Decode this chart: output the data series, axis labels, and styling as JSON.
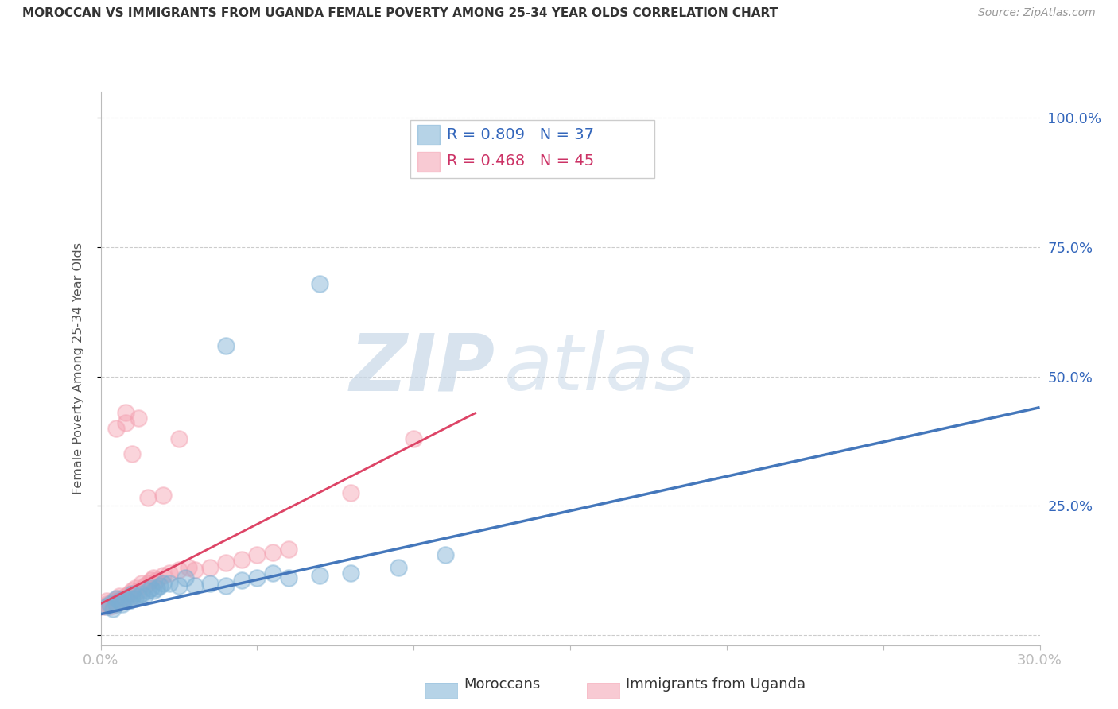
{
  "title": "MOROCCAN VS IMMIGRANTS FROM UGANDA FEMALE POVERTY AMONG 25-34 YEAR OLDS CORRELATION CHART",
  "source": "Source: ZipAtlas.com",
  "ylabel": "Female Poverty Among 25-34 Year Olds",
  "xlim": [
    0.0,
    0.3
  ],
  "ylim": [
    -0.02,
    1.05
  ],
  "xticks": [
    0.0,
    0.05,
    0.1,
    0.15,
    0.2,
    0.25,
    0.3
  ],
  "xticklabels": [
    "0.0%",
    "",
    "",
    "",
    "",
    "",
    "30.0%"
  ],
  "yticks": [
    0.0,
    0.25,
    0.5,
    0.75,
    1.0
  ],
  "yticklabels": [
    "",
    "25.0%",
    "50.0%",
    "75.0%",
    "100.0%"
  ],
  "legend1_r": "R = 0.809",
  "legend1_n": "N = 37",
  "legend2_r": "R = 0.468",
  "legend2_n": "N = 45",
  "blue_color": "#7BAFD4",
  "pink_color": "#F4A0B0",
  "watermark_zip": "ZIP",
  "watermark_atlas": "atlas",
  "blue_scatter": [
    [
      0.002,
      0.055
    ],
    [
      0.003,
      0.06
    ],
    [
      0.004,
      0.05
    ],
    [
      0.005,
      0.06
    ],
    [
      0.005,
      0.07
    ],
    [
      0.006,
      0.065
    ],
    [
      0.007,
      0.06
    ],
    [
      0.008,
      0.07
    ],
    [
      0.009,
      0.065
    ],
    [
      0.01,
      0.07
    ],
    [
      0.01,
      0.08
    ],
    [
      0.011,
      0.07
    ],
    [
      0.012,
      0.075
    ],
    [
      0.013,
      0.08
    ],
    [
      0.014,
      0.075
    ],
    [
      0.015,
      0.085
    ],
    [
      0.016,
      0.09
    ],
    [
      0.017,
      0.085
    ],
    [
      0.018,
      0.09
    ],
    [
      0.019,
      0.095
    ],
    [
      0.02,
      0.1
    ],
    [
      0.022,
      0.1
    ],
    [
      0.025,
      0.095
    ],
    [
      0.027,
      0.11
    ],
    [
      0.03,
      0.095
    ],
    [
      0.035,
      0.1
    ],
    [
      0.04,
      0.095
    ],
    [
      0.045,
      0.105
    ],
    [
      0.05,
      0.11
    ],
    [
      0.055,
      0.12
    ],
    [
      0.06,
      0.11
    ],
    [
      0.07,
      0.115
    ],
    [
      0.08,
      0.12
    ],
    [
      0.095,
      0.13
    ],
    [
      0.11,
      0.155
    ],
    [
      0.04,
      0.56
    ],
    [
      0.07,
      0.68
    ]
  ],
  "pink_scatter": [
    [
      0.001,
      0.055
    ],
    [
      0.002,
      0.06
    ],
    [
      0.002,
      0.065
    ],
    [
      0.003,
      0.055
    ],
    [
      0.003,
      0.06
    ],
    [
      0.004,
      0.065
    ],
    [
      0.005,
      0.06
    ],
    [
      0.005,
      0.065
    ],
    [
      0.006,
      0.07
    ],
    [
      0.006,
      0.075
    ],
    [
      0.007,
      0.065
    ],
    [
      0.007,
      0.07
    ],
    [
      0.008,
      0.075
    ],
    [
      0.009,
      0.08
    ],
    [
      0.01,
      0.075
    ],
    [
      0.01,
      0.085
    ],
    [
      0.011,
      0.09
    ],
    [
      0.012,
      0.085
    ],
    [
      0.013,
      0.1
    ],
    [
      0.014,
      0.095
    ],
    [
      0.015,
      0.1
    ],
    [
      0.016,
      0.105
    ],
    [
      0.017,
      0.11
    ],
    [
      0.018,
      0.105
    ],
    [
      0.02,
      0.115
    ],
    [
      0.022,
      0.12
    ],
    [
      0.025,
      0.125
    ],
    [
      0.028,
      0.13
    ],
    [
      0.03,
      0.125
    ],
    [
      0.035,
      0.13
    ],
    [
      0.04,
      0.14
    ],
    [
      0.045,
      0.145
    ],
    [
      0.05,
      0.155
    ],
    [
      0.055,
      0.16
    ],
    [
      0.06,
      0.165
    ],
    [
      0.015,
      0.265
    ],
    [
      0.02,
      0.27
    ],
    [
      0.01,
      0.35
    ],
    [
      0.025,
      0.38
    ],
    [
      0.005,
      0.4
    ],
    [
      0.008,
      0.41
    ],
    [
      0.012,
      0.42
    ],
    [
      0.008,
      0.43
    ],
    [
      0.08,
      0.275
    ],
    [
      0.1,
      0.38
    ]
  ],
  "blue_trend_x": [
    0.0,
    0.3
  ],
  "blue_trend_y": [
    0.04,
    0.44
  ],
  "pink_trend_x": [
    0.0,
    0.12
  ],
  "pink_trend_y": [
    0.06,
    0.43
  ],
  "bg_color": "#FFFFFF",
  "grid_color": "#CCCCCC",
  "axis_color": "#BBBBBB"
}
